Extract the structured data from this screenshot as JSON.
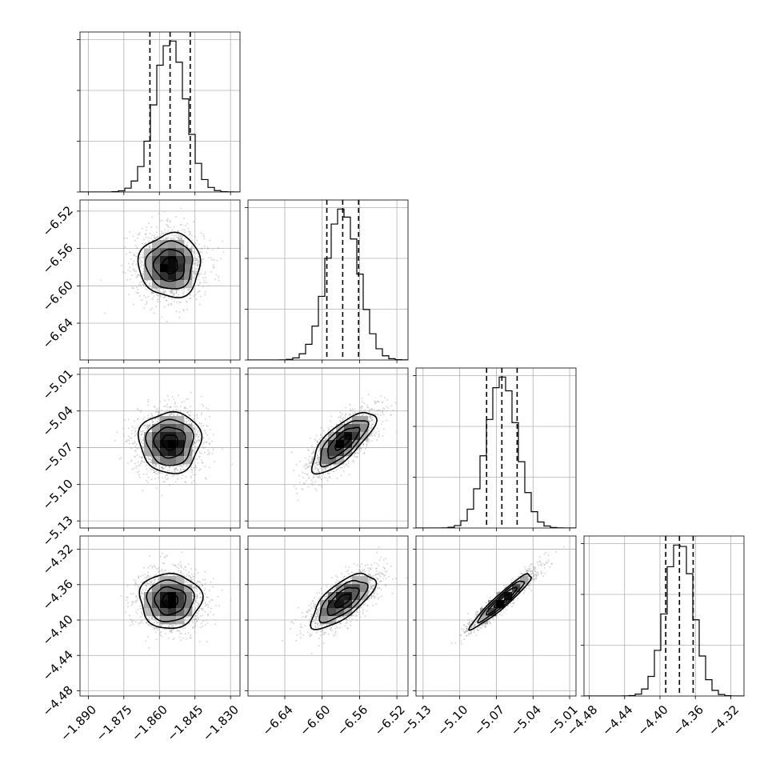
{
  "chart_data": {
    "type": "corner",
    "parameters": [
      {
        "id": "p1",
        "range": [
          -1.8935,
          -1.826
        ],
        "ticks": [
          -1.89,
          -1.875,
          -1.86,
          -1.845,
          -1.83
        ],
        "tick_labels": [
          "−1.890",
          "−1.875",
          "−1.860",
          "−1.845",
          "−1.830"
        ],
        "mean": -1.8555,
        "sd": 0.0065,
        "quantiles": [
          -1.864,
          -1.8555,
          -1.847
        ]
      },
      {
        "id": "p2",
        "range": [
          -6.6794,
          -6.5081
        ],
        "ticks": [
          -6.64,
          -6.6,
          -6.56,
          -6.52
        ],
        "tick_labels": [
          "−6.64",
          "−6.60",
          "−6.56",
          "−6.52"
        ],
        "mean": -6.578,
        "sd": 0.017,
        "quantiles": [
          -6.595,
          -6.578,
          -6.561
        ]
      },
      {
        "id": "p3",
        "range": [
          -5.1358,
          -5.0048
        ],
        "ticks": [
          -5.13,
          -5.1,
          -5.07,
          -5.04,
          -5.01
        ],
        "tick_labels": [
          "−5.13",
          "−5.10",
          "−5.07",
          "−5.04",
          "−5.01"
        ],
        "mean": -5.0655,
        "sd": 0.0125,
        "quantiles": [
          -5.078,
          -5.0655,
          -5.053
        ]
      },
      {
        "id": "p4",
        "range": [
          -4.4859,
          -4.305
        ],
        "ticks": [
          -4.48,
          -4.44,
          -4.4,
          -4.36,
          -4.32
        ],
        "tick_labels": [
          "−4.48",
          "−4.44",
          "−4.40",
          "−4.36",
          "−4.32"
        ],
        "mean": -4.378,
        "sd": 0.0155,
        "quantiles": [
          -4.3935,
          -4.378,
          -4.3625
        ]
      }
    ],
    "correlations": {
      "p2-p1": 0.0,
      "p3-p1": 0.0,
      "p3-p2": 0.75,
      "p4-p1": 0.0,
      "p4-p2": 0.7,
      "p4-p3": 0.95
    },
    "grid": true,
    "colors": {
      "lines": "#000000",
      "grid": "#b0b0b0",
      "density": "#000000"
    }
  }
}
